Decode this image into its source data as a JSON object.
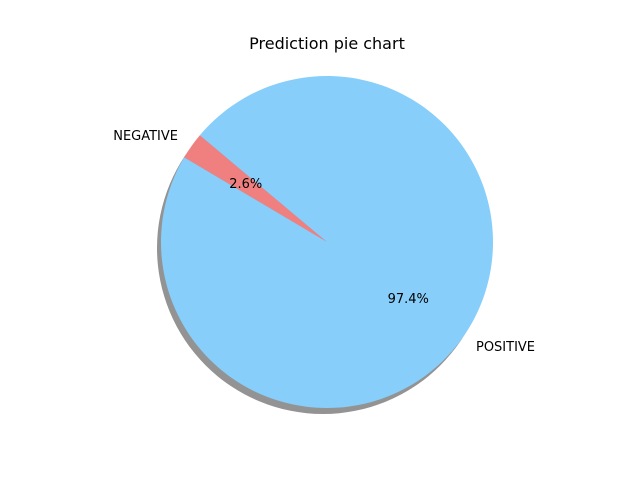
{
  "chart_data": {
    "type": "pie",
    "title": "Prediction pie chart",
    "start_angle_degrees": 140,
    "shadow": true,
    "slices": [
      {
        "label": "NEGATIVE",
        "value": 2.6,
        "pct_label": "2.6%",
        "color": "#F08080"
      },
      {
        "label": "POSITIVE",
        "value": 97.4,
        "pct_label": "97.4%",
        "color": "#87CEFA"
      }
    ]
  }
}
